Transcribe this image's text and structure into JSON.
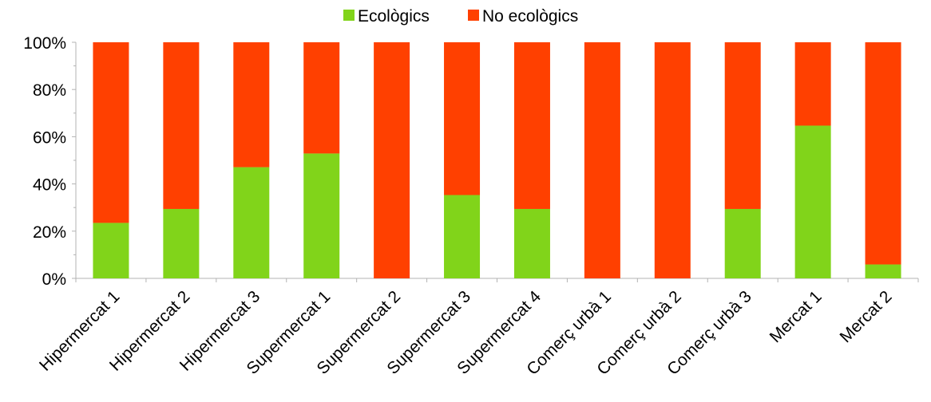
{
  "chart_data": {
    "type": "bar",
    "stacked": true,
    "percent": true,
    "categories": [
      "Hipermercat 1",
      "Hipermercat 2",
      "Hipermercat 3",
      "Supermercat 1",
      "Supermercat 2",
      "Supermercat 3",
      "Supermercat 4",
      "Comerç urbà 1",
      "Comerç urbà 2",
      "Comerç urbà 3",
      "Mercat 1",
      "Mercat 2"
    ],
    "series": [
      {
        "name": "Ecològics",
        "color": "#81d41a",
        "values": [
          23.5,
          29.4,
          47.1,
          52.9,
          0,
          35.3,
          29.4,
          0,
          0,
          29.4,
          64.7,
          5.9
        ]
      },
      {
        "name": "No ecològics",
        "color": "#ff4000",
        "values": [
          76.5,
          70.6,
          52.9,
          47.1,
          100,
          64.7,
          70.6,
          100,
          100,
          70.6,
          35.3,
          94.1
        ]
      }
    ],
    "y_ticks": [
      "0%",
      "20%",
      "40%",
      "60%",
      "80%",
      "100%"
    ],
    "ylim": [
      0,
      100
    ],
    "legend_position": "top",
    "grid": false
  }
}
